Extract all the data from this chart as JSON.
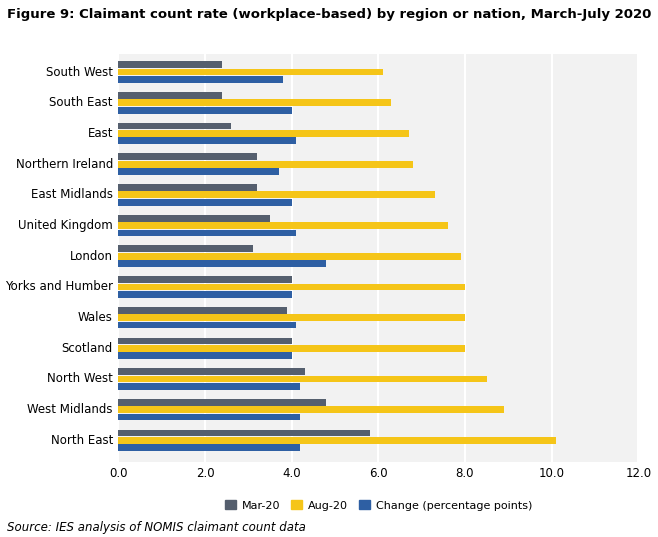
{
  "title": "Figure 9: Claimant count rate (workplace-based) by region or nation, March-July 2020",
  "source": "Source: IES analysis of NOMIS claimant count data",
  "regions": [
    "North East",
    "West Midlands",
    "North West",
    "Scotland",
    "Wales",
    "Yorks and Humber",
    "London",
    "United Kingdom",
    "East Midlands",
    "Northern Ireland",
    "East",
    "South East",
    "South West"
  ],
  "mar20": [
    5.8,
    4.8,
    4.3,
    4.0,
    3.9,
    4.0,
    3.1,
    3.5,
    3.2,
    3.2,
    2.6,
    2.4,
    2.4
  ],
  "aug20": [
    10.1,
    8.9,
    8.5,
    8.0,
    8.0,
    8.0,
    7.9,
    7.6,
    7.3,
    6.8,
    6.7,
    6.3,
    6.1
  ],
  "change": [
    4.2,
    4.2,
    4.2,
    4.0,
    4.1,
    4.0,
    4.8,
    4.1,
    4.0,
    3.7,
    4.1,
    4.0,
    3.8
  ],
  "color_mar": "#555f6e",
  "color_aug": "#f5c518",
  "color_change": "#2e5fa3",
  "xlim": [
    0,
    12.0
  ],
  "xticks": [
    0.0,
    2.0,
    4.0,
    6.0,
    8.0,
    10.0,
    12.0
  ],
  "background_color": "#ffffff",
  "plot_bg_color": "#f2f2f2",
  "title_fontsize": 9.5,
  "axis_fontsize": 8.5,
  "legend_fontsize": 8.0,
  "source_fontsize": 8.5
}
